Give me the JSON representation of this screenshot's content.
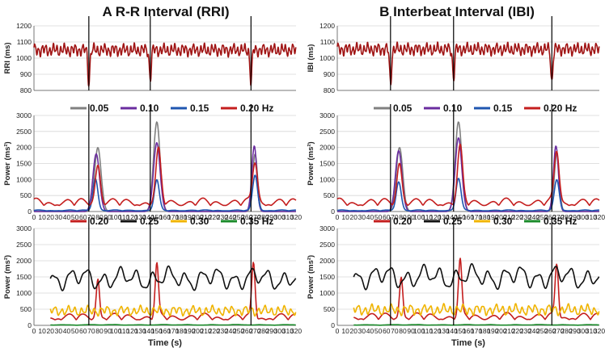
{
  "chart_data": [
    {
      "title": "A R-R Interval (RRI)",
      "panels": [
        {
          "type": "line",
          "ylabel": "RRI (ms)",
          "ylim": [
            800,
            1200
          ],
          "yticks": [
            800,
            900,
            1000,
            1100,
            1200
          ],
          "xlim": [
            0,
            320
          ],
          "x_ticks_shown": false,
          "series": [
            {
              "color": "#a01414",
              "baseline": 1050,
              "osc_amp": 45,
              "osc_period_s": 4.5,
              "dips": [
                {
                  "x": 67,
                  "y": 850
                },
                {
                  "x": 142,
                  "y": 875
                },
                {
                  "x": 265,
                  "y": 855
                }
              ]
            }
          ],
          "vlines": [
            67,
            142,
            265
          ]
        },
        {
          "type": "line",
          "ylabel": "Power (ms²)",
          "ylim": [
            0,
            3000
          ],
          "yticks": [
            0,
            500,
            1000,
            1500,
            2000,
            2500,
            3000
          ],
          "xlim": [
            0,
            320
          ],
          "xticks": [
            0,
            10,
            20,
            30,
            40,
            50,
            60,
            70,
            80,
            90,
            100,
            110,
            120,
            130,
            140,
            150,
            160,
            170,
            180,
            190,
            200,
            210,
            220,
            230,
            240,
            250,
            260,
            270,
            280,
            290,
            300,
            310,
            320
          ],
          "series": [
            {
              "color": "#808080",
              "peaks": [
                [
                  78,
                  2000,
                  4
                ],
                [
                  150,
                  2800,
                  4
                ],
                [
                  270,
                  1800,
                  3
                ]
              ],
              "background": 0
            },
            {
              "color": "#6a2c9f",
              "peaks": [
                [
                  76,
                  1800,
                  4
                ],
                [
                  150,
                  2150,
                  4
                ],
                [
                  269,
                  2050,
                  3
                ]
              ],
              "background": 0
            },
            {
              "color": "#1f56b0",
              "peaks": [
                [
                  75,
                  1000,
                  3
                ],
                [
                  150,
                  950,
                  3
                ],
                [
                  270,
                  1100,
                  3
                ]
              ],
              "background": 50
            },
            {
              "color": "#c41e1e",
              "peaks": [
                [
                  78,
                  1250,
                  3
                ],
                [
                  152,
                  1600,
                  3
                ],
                [
                  270,
                  1300,
                  3
                ]
              ],
              "background": 420
            }
          ],
          "legend": [
            "0.05",
            "0.10",
            "0.15",
            "0.20 Hz"
          ],
          "vlines": [
            67,
            142,
            265
          ]
        },
        {
          "type": "line",
          "ylabel": "Power (ms²)",
          "xlabel": "Time (s)",
          "ylim": [
            0,
            3000
          ],
          "yticks": [
            0,
            500,
            1000,
            1500,
            2000,
            2500,
            3000
          ],
          "xlim": [
            0,
            320
          ],
          "xticks": [
            0,
            10,
            20,
            30,
            40,
            50,
            60,
            70,
            80,
            90,
            100,
            110,
            120,
            130,
            140,
            150,
            160,
            170,
            180,
            190,
            200,
            210,
            220,
            230,
            240,
            250,
            260,
            270,
            280,
            290,
            300,
            310,
            320
          ],
          "series": [
            {
              "color": "#c41e1e",
              "peaks": [
                [
                  78,
                  1250,
                  2
                ],
                [
                  150,
                  1600,
                  2
                ],
                [
                  268,
                  1650,
                  2
                ]
              ],
              "background": 380,
              "start": 20
            },
            {
              "color": "#111111",
              "baseline": 1450,
              "osc_amp": 400,
              "osc_period_s": 20,
              "start": 20
            },
            {
              "color": "#f0b400",
              "baseline": 450,
              "osc_amp": 180,
              "osc_period_s": 8,
              "start": 20
            },
            {
              "color": "#1a8a2a",
              "baseline": 15,
              "osc_amp": 10,
              "osc_period_s": 30,
              "start": 20
            }
          ],
          "legend": [
            "0.20",
            "0.25",
            "0.30",
            "0.35 Hz"
          ],
          "vlines": [
            67,
            142,
            265
          ]
        }
      ]
    },
    {
      "title": "B Interbeat Interval (IBI)",
      "panels": [
        {
          "type": "line",
          "ylabel": "IBI (ms)",
          "ylim": [
            800,
            1200
          ],
          "yticks": [
            800,
            900,
            1000,
            1100,
            1200
          ],
          "xlim": [
            0,
            320
          ],
          "x_ticks_shown": false,
          "series": [
            {
              "color": "#a01414",
              "baseline": 1055,
              "osc_amp": 45,
              "osc_period_s": 4.5,
              "dips": [
                {
                  "x": 65,
                  "y": 840
                },
                {
                  "x": 142,
                  "y": 878
                },
                {
                  "x": 262,
                  "y": 852
                }
              ]
            }
          ],
          "vlines": [
            65,
            142,
            262
          ]
        },
        {
          "type": "line",
          "ylabel": "Power (ms²)",
          "ylim": [
            0,
            3000
          ],
          "yticks": [
            0,
            500,
            1000,
            1500,
            2000,
            2500,
            3000
          ],
          "xlim": [
            0,
            320
          ],
          "xticks": [
            0,
            10,
            20,
            30,
            40,
            50,
            60,
            70,
            80,
            90,
            100,
            110,
            120,
            130,
            140,
            150,
            160,
            170,
            180,
            190,
            200,
            210,
            220,
            230,
            240,
            250,
            260,
            270,
            280,
            290,
            300,
            310,
            320
          ],
          "series": [
            {
              "color": "#808080",
              "peaks": [
                [
                  76,
                  2000,
                  4
                ],
                [
                  148,
                  2800,
                  4
                ],
                [
                  268,
                  1800,
                  3
                ]
              ],
              "background": 0
            },
            {
              "color": "#6a2c9f",
              "peaks": [
                [
                  75,
                  1900,
                  4
                ],
                [
                  148,
                  2300,
                  4
                ],
                [
                  267,
                  2050,
                  3
                ]
              ],
              "background": 0
            },
            {
              "color": "#1f56b0",
              "peaks": [
                [
                  75,
                  900,
                  3
                ],
                [
                  148,
                  1000,
                  3
                ],
                [
                  268,
                  950,
                  3
                ]
              ],
              "background": 50
            },
            {
              "color": "#c41e1e",
              "peaks": [
                [
                  76,
                  1300,
                  3
                ],
                [
                  150,
                  1700,
                  3
                ],
                [
                  268,
                  1600,
                  3
                ]
              ],
              "background": 420
            }
          ],
          "legend": [
            "0.05",
            "0.10",
            "0.15",
            "0.20 Hz"
          ],
          "vlines": [
            65,
            142,
            262
          ]
        },
        {
          "type": "line",
          "ylabel": "Power (ms²)",
          "xlabel": "Time (s)",
          "ylim": [
            0,
            3000
          ],
          "yticks": [
            0,
            500,
            1000,
            1500,
            2000,
            2500,
            3000
          ],
          "xlim": [
            0,
            320
          ],
          "xticks": [
            0,
            10,
            20,
            30,
            40,
            50,
            60,
            70,
            80,
            90,
            100,
            110,
            120,
            130,
            140,
            150,
            160,
            170,
            180,
            190,
            200,
            210,
            220,
            230,
            240,
            250,
            260,
            270,
            280,
            290,
            300,
            310,
            320
          ],
          "series": [
            {
              "color": "#c41e1e",
              "peaks": [
                [
                  78,
                  1300,
                  2
                ],
                [
                  150,
                  1700,
                  2
                ],
                [
                  268,
                  1600,
                  2
                ]
              ],
              "background": 400,
              "start": 20
            },
            {
              "color": "#111111",
              "baseline": 1500,
              "osc_amp": 420,
              "osc_period_s": 20,
              "start": 20
            },
            {
              "color": "#f0b400",
              "baseline": 480,
              "osc_amp": 200,
              "osc_period_s": 8,
              "start": 20
            },
            {
              "color": "#1a8a2a",
              "baseline": 15,
              "osc_amp": 10,
              "osc_period_s": 30,
              "start": 20
            }
          ],
          "legend": [
            "0.20",
            "0.25",
            "0.30",
            "0.35 Hz"
          ],
          "vlines": [
            65,
            142,
            262
          ]
        }
      ]
    }
  ]
}
